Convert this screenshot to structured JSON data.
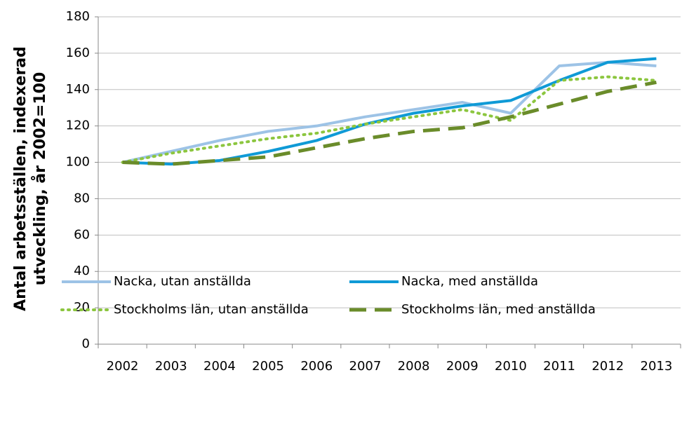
{
  "chart_data": {
    "type": "line",
    "ylabel": [
      "Antal arbetsställen, indexerad",
      "utveckling, år 2002=100"
    ],
    "categories": [
      "2002",
      "2003",
      "2004",
      "2005",
      "2006",
      "2007",
      "2008",
      "2009",
      "2010",
      "2011",
      "2012",
      "2013"
    ],
    "ylim": [
      0,
      180
    ],
    "yticks": [
      0,
      20,
      40,
      60,
      80,
      100,
      120,
      140,
      160,
      180
    ],
    "grid": true,
    "series": [
      {
        "name": "Nacka, utan anställda",
        "color": "#9dc3e6",
        "style": "solid",
        "values": [
          100,
          106,
          112,
          117,
          120,
          125,
          129,
          133,
          127,
          153,
          155,
          153
        ]
      },
      {
        "name": "Nacka, med anställda",
        "color": "#0f9ad6",
        "style": "solid",
        "values": [
          100,
          99,
          101,
          106,
          112,
          121,
          127,
          131,
          134,
          145,
          155,
          157
        ]
      },
      {
        "name": "Stockholms län, utan anställda",
        "color": "#8cc63f",
        "style": "dotted",
        "values": [
          100,
          105,
          109,
          113,
          116,
          121,
          125,
          129,
          123,
          145,
          147,
          145
        ]
      },
      {
        "name": "Stockholms län, med anställda",
        "color": "#6a8c2a",
        "style": "dashed",
        "values": [
          100,
          99,
          101,
          103,
          108,
          113,
          117,
          119,
          125,
          132,
          139,
          144
        ]
      }
    ]
  }
}
